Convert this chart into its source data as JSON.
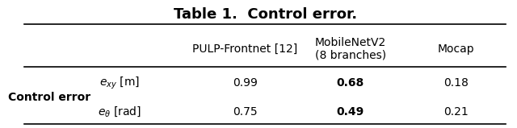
{
  "title": "Table 1.  Control error.",
  "col_headers": [
    "",
    "PULP-Frontnet [12]",
    "MobileNetV2\n(8 branches)",
    "Mocap"
  ],
  "row_header_group": "Control error",
  "row_labels": [
    "$e_{xy}$ [m]",
    "$e_{\\theta}$ [rad]"
  ],
  "data": [
    [
      "0.99",
      "0.68",
      "0.18"
    ],
    [
      "0.75",
      "0.49",
      "0.21"
    ]
  ],
  "bold_col_index": 1,
  "background_color": "#ffffff",
  "text_color": "#000000",
  "title_fontsize": 13,
  "header_fontsize": 10,
  "cell_fontsize": 10,
  "row_header_fontsize": 10
}
